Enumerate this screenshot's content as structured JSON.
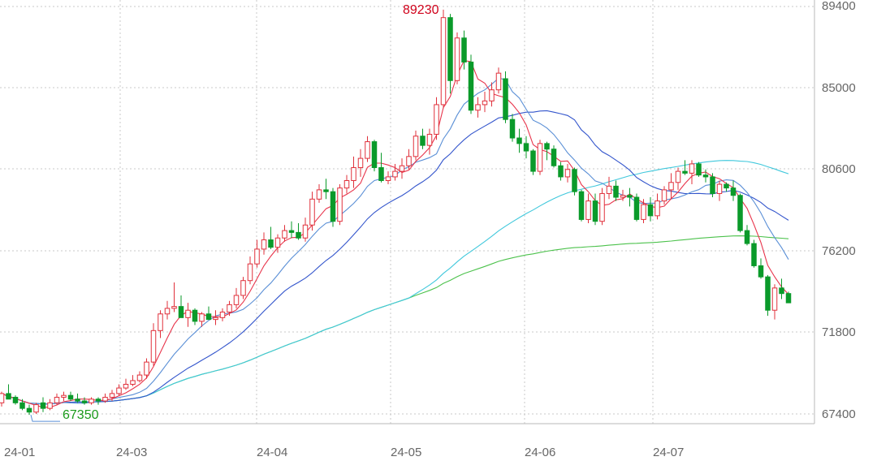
{
  "chart_data": {
    "type": "candlestick",
    "y_axis": {
      "ticks": [
        "89400",
        "85000",
        "80600",
        "76200",
        "71800",
        "67400"
      ],
      "ylim": [
        67400,
        89400
      ],
      "position": "right",
      "grid": true
    },
    "x_axis": {
      "ticks": [
        "24-01",
        "24-03",
        "24-04",
        "24-05",
        "24-06",
        "24-07"
      ],
      "grid": true
    },
    "annotations": {
      "high": {
        "label": "89230",
        "value": 89230,
        "color": "#d0021b"
      },
      "low": {
        "label": "67350",
        "value": 67350,
        "color": "#1a9a1a"
      }
    },
    "colors": {
      "up": "#e0303b",
      "down": "#0a9a2a",
      "ma5": "#e8344b",
      "ma10": "#5a8fd6",
      "ma20": "#3355cc",
      "ma60": "#40c8dc",
      "ma120": "#4cc24c",
      "grid": "#c8c8c8"
    },
    "candles": [
      [
        68000,
        68600,
        67800,
        68500
      ],
      [
        68500,
        69000,
        68300,
        68200
      ],
      [
        68300,
        68400,
        67900,
        68000
      ],
      [
        68000,
        68200,
        67600,
        67700
      ],
      [
        67700,
        67900,
        67350,
        67500
      ],
      [
        67500,
        68000,
        67400,
        67900
      ],
      [
        68000,
        68300,
        67500,
        67700
      ],
      [
        67700,
        68200,
        67600,
        68000
      ],
      [
        68000,
        68500,
        67900,
        68300
      ],
      [
        68300,
        68600,
        68100,
        68400
      ],
      [
        68400,
        68600,
        68100,
        68200
      ],
      [
        68200,
        68500,
        68000,
        68100
      ],
      [
        68100,
        68300,
        67900,
        68000
      ],
      [
        68000,
        68300,
        67900,
        68200
      ],
      [
        68200,
        68300,
        67900,
        68100
      ],
      [
        68100,
        68500,
        68000,
        68300
      ],
      [
        68300,
        68700,
        68100,
        68500
      ],
      [
        68500,
        69000,
        68400,
        68800
      ],
      [
        68800,
        69300,
        68700,
        69000
      ],
      [
        69000,
        69500,
        68900,
        69200
      ],
      [
        69200,
        69700,
        69100,
        69500
      ],
      [
        69500,
        70400,
        69300,
        70200
      ],
      [
        70200,
        72300,
        70000,
        71900
      ],
      [
        71900,
        73000,
        71500,
        72800
      ],
      [
        72800,
        73500,
        72500,
        73100
      ],
      [
        73100,
        74500,
        72900,
        73200
      ],
      [
        73200,
        73800,
        72800,
        72600
      ],
      [
        72600,
        73400,
        72100,
        73000
      ],
      [
        73000,
        73100,
        72200,
        72400
      ],
      [
        72400,
        72900,
        72100,
        72800
      ],
      [
        72800,
        73200,
        72500,
        72500
      ],
      [
        72500,
        73000,
        72200,
        72600
      ],
      [
        72600,
        73100,
        72400,
        72900
      ],
      [
        72900,
        73500,
        72700,
        73300
      ],
      [
        73300,
        74200,
        73100,
        73800
      ],
      [
        73800,
        74800,
        73600,
        74600
      ],
      [
        74600,
        75900,
        74400,
        75500
      ],
      [
        75500,
        76800,
        75300,
        76300
      ],
      [
        76300,
        77200,
        76000,
        76800
      ],
      [
        76800,
        77500,
        76300,
        76400
      ],
      [
        76400,
        77100,
        76100,
        76900
      ],
      [
        76900,
        77600,
        76700,
        77300
      ],
      [
        77300,
        77800,
        76900,
        77200
      ],
      [
        77200,
        77700,
        76800,
        76900
      ],
      [
        76900,
        78000,
        76700,
        77600
      ],
      [
        77600,
        79400,
        77300,
        79000
      ],
      [
        79000,
        79800,
        78800,
        79500
      ],
      [
        79500,
        80100,
        79000,
        79400
      ],
      [
        79400,
        79600,
        77500,
        77800
      ],
      [
        77800,
        79800,
        77600,
        79600
      ],
      [
        79600,
        80300,
        79300,
        80000
      ],
      [
        80000,
        81300,
        79600,
        80700
      ],
      [
        80700,
        81700,
        80200,
        81200
      ],
      [
        81200,
        82400,
        81000,
        82100
      ],
      [
        82100,
        82200,
        80500,
        80700
      ],
      [
        80700,
        81500,
        79900,
        80000
      ],
      [
        80000,
        80500,
        79800,
        80200
      ],
      [
        80200,
        80900,
        80000,
        80500
      ],
      [
        80500,
        81200,
        80100,
        80800
      ],
      [
        80800,
        81700,
        80600,
        81300
      ],
      [
        81300,
        82700,
        81100,
        82400
      ],
      [
        82400,
        82800,
        81700,
        81900
      ],
      [
        81900,
        82800,
        81400,
        82500
      ],
      [
        82500,
        84500,
        82200,
        84100
      ],
      [
        84100,
        89230,
        83900,
        88800
      ],
      [
        88800,
        89000,
        84700,
        85400
      ],
      [
        85400,
        88000,
        85200,
        87700
      ],
      [
        87700,
        88100,
        86000,
        86400
      ],
      [
        86400,
        86800,
        83600,
        83800
      ],
      [
        83800,
        84500,
        83400,
        84100
      ],
      [
        84100,
        84800,
        83700,
        84300
      ],
      [
        84300,
        85300,
        84000,
        84900
      ],
      [
        84900,
        86100,
        84700,
        85800
      ],
      [
        85500,
        85900,
        83100,
        83300
      ],
      [
        83300,
        83600,
        82100,
        82300
      ],
      [
        82300,
        82800,
        81500,
        82000
      ],
      [
        82000,
        82400,
        81200,
        81600
      ],
      [
        81600,
        81700,
        80300,
        80500
      ],
      [
        80500,
        82200,
        80300,
        82000
      ],
      [
        82000,
        82100,
        81100,
        81700
      ],
      [
        81700,
        81900,
        80700,
        80800
      ],
      [
        80800,
        81000,
        80000,
        80200
      ],
      [
        80200,
        80900,
        79900,
        80600
      ],
      [
        80600,
        80700,
        79200,
        79400
      ],
      [
        79400,
        79500,
        77800,
        77900
      ],
      [
        77900,
        79300,
        77700,
        78900
      ],
      [
        78900,
        79300,
        77600,
        77800
      ],
      [
        77800,
        79600,
        77600,
        79300
      ],
      [
        79300,
        80200,
        79000,
        79700
      ],
      [
        79700,
        80000,
        78900,
        79100
      ],
      [
        79100,
        79500,
        78900,
        79200
      ],
      [
        79200,
        79600,
        78600,
        79100
      ],
      [
        79100,
        79300,
        77800,
        77900
      ],
      [
        77900,
        79000,
        77700,
        78700
      ],
      [
        78700,
        79100,
        77800,
        78100
      ],
      [
        78100,
        79300,
        77900,
        78900
      ],
      [
        78900,
        79700,
        78700,
        79500
      ],
      [
        79500,
        80400,
        79000,
        79900
      ],
      [
        79900,
        80700,
        79500,
        80500
      ],
      [
        80500,
        81100,
        80300,
        80400
      ],
      [
        80400,
        81100,
        79800,
        80900
      ],
      [
        80900,
        81000,
        80200,
        80300
      ],
      [
        80300,
        80600,
        79900,
        80200
      ],
      [
        80200,
        80400,
        79100,
        79300
      ],
      [
        79300,
        80000,
        78900,
        79800
      ],
      [
        79800,
        79900,
        79400,
        79600
      ],
      [
        79600,
        80000,
        78900,
        79200
      ],
      [
        79200,
        79300,
        77200,
        77300
      ],
      [
        77300,
        77600,
        76500,
        76600
      ],
      [
        76600,
        76800,
        75300,
        75400
      ],
      [
        75400,
        75800,
        74700,
        74800
      ],
      [
        74800,
        74900,
        72700,
        73000
      ],
      [
        73000,
        74400,
        72500,
        74200
      ],
      [
        74200,
        74700,
        73600,
        73900
      ],
      [
        73900,
        74000,
        73400,
        73400
      ]
    ]
  }
}
